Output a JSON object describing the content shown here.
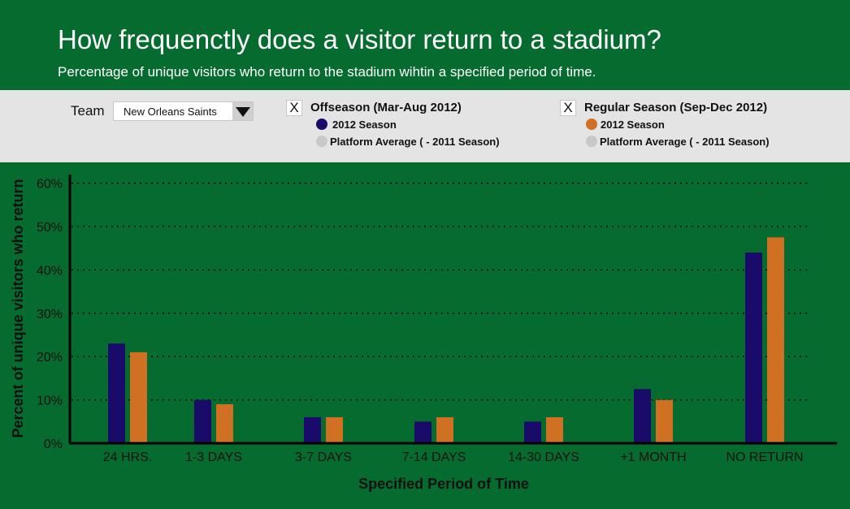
{
  "header": {
    "title": "How frequenctly does a visitor return to a stadium?",
    "subtitle": "Percentage of unique visitors who return to the stadium wihtin a specified period of time."
  },
  "controls": {
    "team_label": "Team",
    "team_value": "New Orleans Saints",
    "offseason": {
      "check": "X",
      "title": "Offseason (Mar-Aug 2012)",
      "season_label": "2012 Season",
      "avg_label": "Platform Average ( - 2011 Season)"
    },
    "regular": {
      "check": "X",
      "title": "Regular Season (Sep-Dec 2012)",
      "season_label": "2012 Season",
      "avg_label": "Platform Average ( - 2011 Season)"
    }
  },
  "colors": {
    "background": "#066b2f",
    "offseason_2012": "#1a0b6b",
    "regular_2012": "#cf7022",
    "platform_avg": "#c8c8c8",
    "gridline": "#000000"
  },
  "chart_data": {
    "type": "bar",
    "xlabel": "Specified Period of Time",
    "ylabel": "Percent of unique visitors who return",
    "categories": [
      "24 HRS.",
      "1-3 DAYS",
      "3-7 DAYS",
      "7-14 DAYS",
      "14-30 DAYS",
      "+1 MONTH",
      "NO RETURN"
    ],
    "series": [
      {
        "name": "2012 Season",
        "group": "Offseason (Mar-Aug 2012)",
        "values": [
          23,
          10,
          6,
          5,
          5,
          12.5,
          44
        ]
      },
      {
        "name": "2012 Season",
        "group": "Regular Season (Sep-Dec 2012)",
        "values": [
          21,
          9,
          6,
          6,
          6,
          10,
          47.5
        ]
      }
    ],
    "ylim": [
      0,
      62
    ],
    "yticks": [
      0,
      10,
      20,
      30,
      40,
      50,
      60
    ],
    "ytick_labels": [
      "0%",
      "10%",
      "20%",
      "30%",
      "40%",
      "50%",
      "60%"
    ],
    "grid": "dotted horizontal",
    "legend": "top"
  }
}
